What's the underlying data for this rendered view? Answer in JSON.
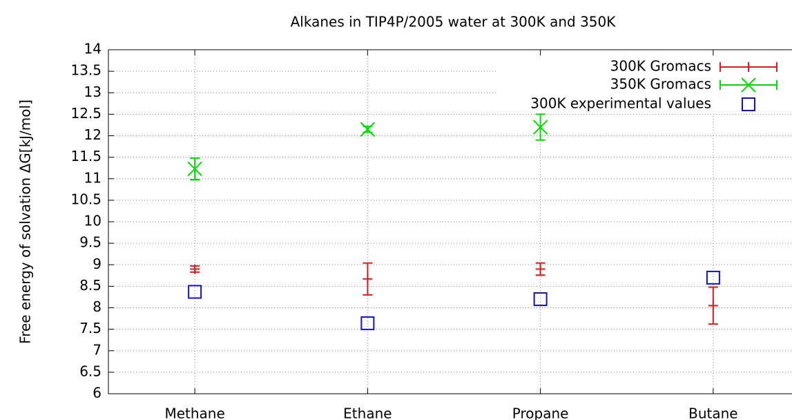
{
  "chart_data": {
    "type": "errorbar",
    "title": "Alkanes in TIP4P/2005 water at 300K and 350K",
    "y_label": "Free energy of solvation ΔG[kJ/mol]",
    "categories": [
      "Methane",
      "Ethane",
      "Propane",
      "Butane"
    ],
    "series": [
      {
        "name": "300K Gromacs",
        "color": "#e41a1c",
        "marker": "plus",
        "values": [
          8.9,
          8.67,
          8.9,
          8.05
        ],
        "errors": [
          0.07,
          0.37,
          0.14,
          0.43
        ]
      },
      {
        "name": "350K Gromacs",
        "color": "#00dd00",
        "marker": "cross",
        "values": [
          11.23,
          12.15,
          12.2,
          null
        ],
        "errors": [
          0.25,
          0.07,
          0.3,
          null
        ]
      },
      {
        "name": "300K experimental values",
        "color": "#1010d0",
        "marker": "square",
        "values": [
          8.37,
          7.64,
          8.2,
          8.7
        ]
      }
    ],
    "ylim": [
      6,
      14
    ],
    "yticks": [
      6,
      6.5,
      7,
      7.5,
      8,
      8.5,
      9,
      9.5,
      10,
      10.5,
      11,
      11.5,
      12,
      12.5,
      13,
      13.5,
      14
    ],
    "grid": true,
    "legend": "top-right"
  }
}
